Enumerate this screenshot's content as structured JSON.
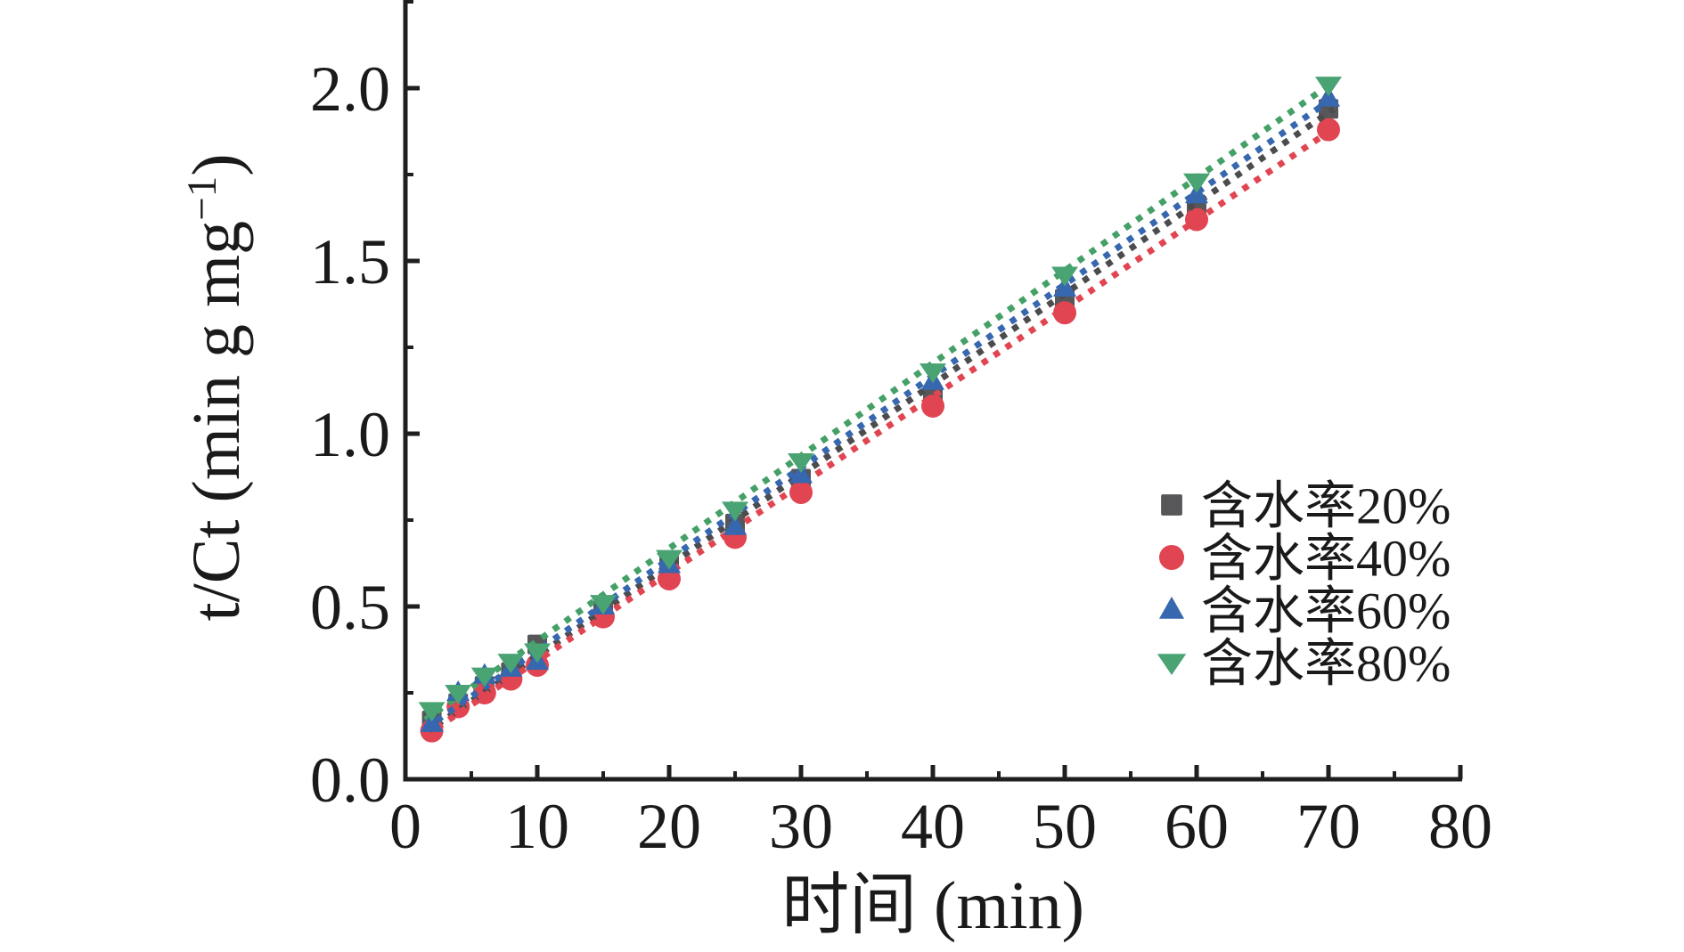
{
  "figure": {
    "background": "#ffffff",
    "axis_color": "#1f1f1f",
    "text_color": "#1a1a1a"
  },
  "chart_data": {
    "type": "scatter",
    "title": "",
    "xlabel": "时间 (min)",
    "ylabel": "t/Ct (min g mg⁻¹)",
    "ylabel_parts": {
      "base": "t/Ct (min g mg",
      "sup": "−1",
      "close": ")"
    },
    "xlim": [
      0,
      80
    ],
    "ylim": [
      0,
      2.26
    ],
    "grid": false,
    "legend_position": "lower-right",
    "x_tick_values": [
      0,
      10,
      20,
      30,
      40,
      50,
      60,
      70,
      80
    ],
    "x_tick_labels": [
      "0",
      "10",
      "20",
      "30",
      "40",
      "50",
      "60",
      "70",
      "80"
    ],
    "x_minor_ticks": [
      5,
      15,
      25,
      35,
      45,
      55,
      65,
      75
    ],
    "y_tick_values": [
      0,
      0.5,
      1,
      1.5,
      2
    ],
    "y_tick_labels": [
      "0.0",
      "0.5",
      "1.0",
      "1.5",
      "2.0"
    ],
    "y_minor_ticks": [
      0.25,
      0.75,
      1.25,
      1.75,
      2.25
    ],
    "x": [
      2,
      4,
      6,
      8,
      10,
      15,
      20,
      25,
      30,
      40,
      50,
      60,
      70
    ],
    "series": [
      {
        "name": "含水率20%",
        "marker": "square",
        "color": "#57575a",
        "line_color": "#4c4c4f",
        "values": [
          0.17,
          0.22,
          0.27,
          0.31,
          0.39,
          0.49,
          0.62,
          0.74,
          0.87,
          1.11,
          1.39,
          1.66,
          1.94
        ],
        "fit_intercept": 0.095,
        "fit_slope": 0.0262
      },
      {
        "name": "含水率40%",
        "marker": "circle",
        "color": "#e04551",
        "line_color": "#e04551",
        "values": [
          0.14,
          0.21,
          0.25,
          0.29,
          0.33,
          0.47,
          0.58,
          0.7,
          0.83,
          1.08,
          1.35,
          1.62,
          1.88
        ],
        "fit_intercept": 0.088,
        "fit_slope": 0.0255
      },
      {
        "name": "含水率60%",
        "marker": "triangle-up",
        "color": "#3767af",
        "line_color": "#3767af",
        "values": [
          0.16,
          0.25,
          0.3,
          0.32,
          0.34,
          0.5,
          0.62,
          0.73,
          0.88,
          1.15,
          1.42,
          1.69,
          1.97
        ],
        "fit_intercept": 0.107,
        "fit_slope": 0.0265
      },
      {
        "name": "含水率80%",
        "marker": "triangle-down",
        "color": "#4aa373",
        "line_color": "#44a066",
        "values": [
          0.2,
          0.25,
          0.3,
          0.34,
          0.37,
          0.51,
          0.64,
          0.78,
          0.92,
          1.18,
          1.46,
          1.73,
          2.01
        ],
        "fit_intercept": 0.132,
        "fit_slope": 0.0268
      }
    ]
  }
}
